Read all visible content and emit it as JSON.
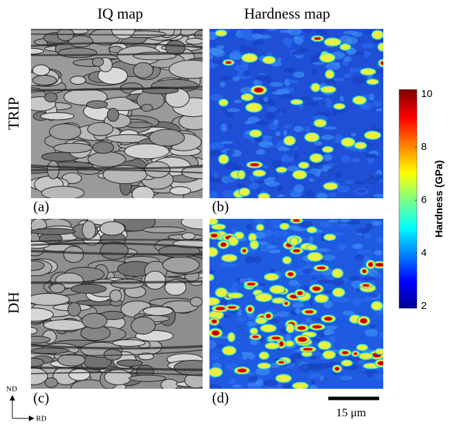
{
  "columns": [
    "IQ map",
    "Hardness map"
  ],
  "rows": [
    "TRIP",
    "DH"
  ],
  "panels": [
    "(a)",
    "(b)",
    "(c)",
    "(d)"
  ],
  "colorbar": {
    "label": "Hardness (GPa)",
    "ticks": [
      2,
      4,
      6,
      8,
      10
    ]
  },
  "scale_bar": "15 μm",
  "axes": {
    "vertical": "ND",
    "horizontal": "RD"
  }
}
